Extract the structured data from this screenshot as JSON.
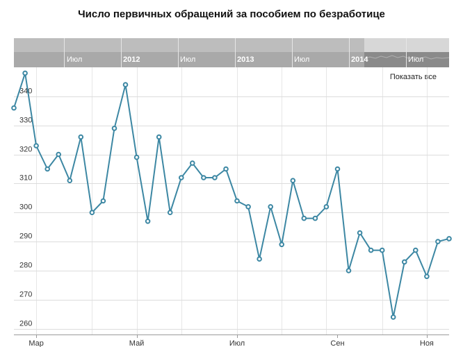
{
  "chart_data": {
    "type": "line",
    "title": "Число первичных обращений за пособием по безработице",
    "xlabel": "",
    "ylabel": "",
    "ylim": [
      258,
      350
    ],
    "y_ticks": [
      260,
      270,
      280,
      290,
      300,
      310,
      320,
      330,
      340
    ],
    "x_ticks": [
      "Мар",
      "Май",
      "Июл",
      "Сен",
      "Ноя"
    ],
    "grid": true,
    "series": [
      {
        "values": [
          336,
          348,
          323,
          315,
          320,
          311,
          326,
          300,
          304,
          329,
          344,
          319,
          297,
          326,
          300,
          312,
          317,
          312,
          312,
          315,
          304,
          302,
          284,
          302,
          289,
          311,
          298,
          298,
          302,
          315,
          280,
          293,
          287,
          287,
          264,
          283,
          287,
          278,
          290,
          291
        ]
      }
    ],
    "color": "#3c87a3"
  },
  "navigator": {
    "labels": [
      "Июл",
      "2012",
      "Июл",
      "2013",
      "Июл",
      "2014",
      "Июл"
    ],
    "background": "#bdbdbd",
    "window_color": "#d7d7d7"
  },
  "controls": {
    "show_all_label": "Показать все"
  }
}
